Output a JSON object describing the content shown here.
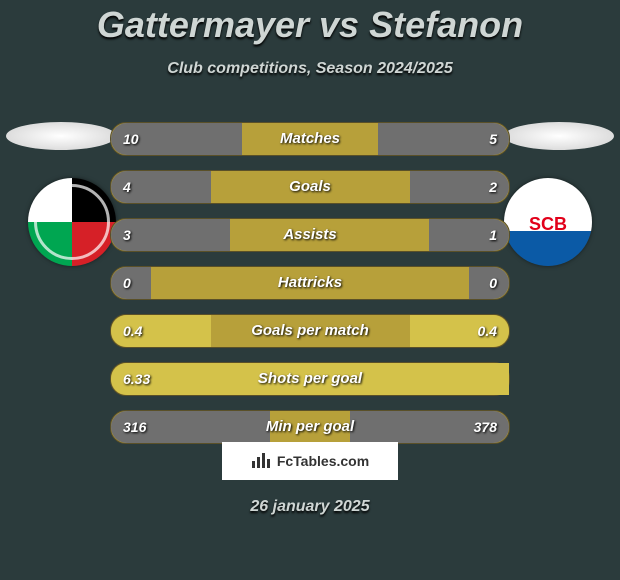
{
  "title": "Gattermayer vs Stefanon",
  "subtitle": "Club competitions, Season 2024/2025",
  "date": "26 january 2025",
  "brand": "FcTables.com",
  "colors": {
    "page_bg": "#2b3b3c",
    "bar_base": "#b7a03a",
    "neutral_fill": "#6f6f6f",
    "highlight_fill": "#d4c24a",
    "text": "#ffffff"
  },
  "rows": [
    {
      "label": "Matches",
      "left": "10",
      "right": "5",
      "left_fill_pct": 33,
      "left_color": "#6f6f6f",
      "right_fill_pct": 33,
      "right_color": "#6f6f6f"
    },
    {
      "label": "Goals",
      "left": "4",
      "right": "2",
      "left_fill_pct": 25,
      "left_color": "#6f6f6f",
      "right_fill_pct": 25,
      "right_color": "#6f6f6f"
    },
    {
      "label": "Assists",
      "left": "3",
      "right": "1",
      "left_fill_pct": 30,
      "left_color": "#6f6f6f",
      "right_fill_pct": 20,
      "right_color": "#6f6f6f"
    },
    {
      "label": "Hattricks",
      "left": "0",
      "right": "0",
      "left_fill_pct": 10,
      "left_color": "#6f6f6f",
      "right_fill_pct": 10,
      "right_color": "#6f6f6f"
    },
    {
      "label": "Goals per match",
      "left": "0.4",
      "right": "0.4",
      "left_fill_pct": 25,
      "left_color": "#d4c24a",
      "right_fill_pct": 25,
      "right_color": "#d4c24a"
    },
    {
      "label": "Shots per goal",
      "left": "6.33",
      "right": "",
      "left_fill_pct": 100,
      "left_color": "#d4c24a",
      "right_fill_pct": 0,
      "right_color": "#d4c24a"
    },
    {
      "label": "Min per goal",
      "left": "316",
      "right": "378",
      "left_fill_pct": 40,
      "left_color": "#6f6f6f",
      "right_fill_pct": 40,
      "right_color": "#6f6f6f"
    }
  ],
  "badges": {
    "left_alt": "WAC club badge",
    "right_alt": "Rivella SC Bregenz badge",
    "right_text": "SCB"
  }
}
